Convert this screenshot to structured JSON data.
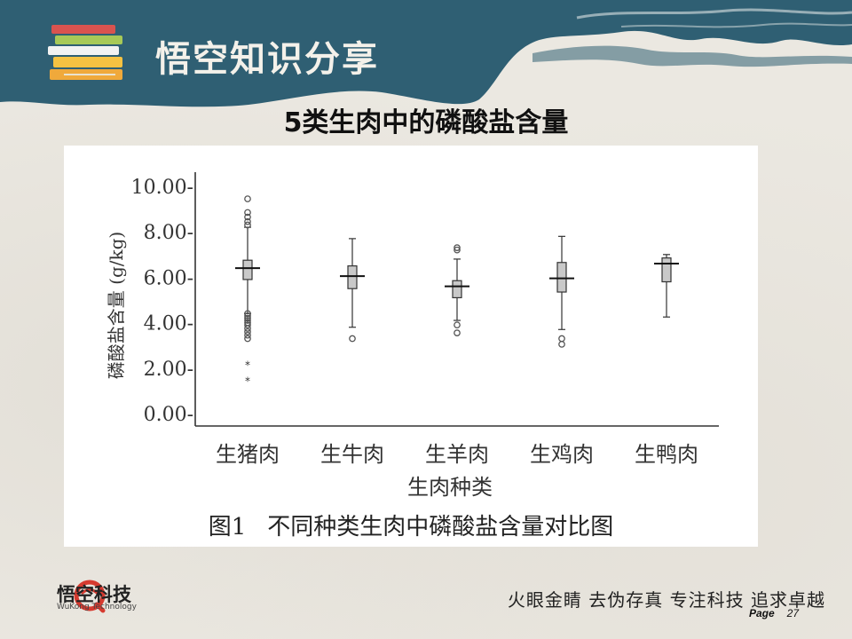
{
  "header": {
    "brand_title": "悟空知识分享",
    "slide_title": "5类生肉中的磷酸盐含量",
    "colors": {
      "banner": "#2f5f73",
      "banner_text": "#f4f1ea"
    }
  },
  "chart_data": {
    "type": "box",
    "title": "",
    "xlabel": "生肉种类",
    "ylabel": "磷酸盐含量 (g/kg)",
    "ylim": [
      0,
      10
    ],
    "yticks": [
      0,
      2,
      4,
      6,
      8,
      10
    ],
    "ytick_labels": [
      "0.00-",
      "2.00-",
      "4.00-",
      "6.00-",
      "8.00-",
      "10.00-"
    ],
    "categories": [
      "生猪肉",
      "生牛肉",
      "生羊肉",
      "生鸡肉",
      "生鸭肉"
    ],
    "boxes": [
      {
        "name": "生猪肉",
        "whisker_low": 4.4,
        "q1": 5.9,
        "median": 6.4,
        "q3": 6.75,
        "whisker_high": 8.2,
        "outliers": [
          9.45,
          8.85,
          8.65,
          8.45,
          8.3,
          4.4,
          4.3,
          4.2,
          4.1,
          4.0,
          3.9,
          3.75,
          3.6,
          3.45,
          3.3
        ],
        "extremes": [
          2.2,
          1.5
        ]
      },
      {
        "name": "生牛肉",
        "whisker_low": 3.8,
        "q1": 5.5,
        "median": 6.05,
        "q3": 6.5,
        "whisker_high": 7.7,
        "outliers": [
          3.3
        ],
        "extremes": []
      },
      {
        "name": "生羊肉",
        "whisker_low": 4.1,
        "q1": 5.1,
        "median": 5.6,
        "q3": 5.85,
        "whisker_high": 6.8,
        "outliers": [
          7.3,
          7.2,
          3.9,
          3.55
        ],
        "extremes": []
      },
      {
        "name": "生鸡肉",
        "whisker_low": 3.7,
        "q1": 5.35,
        "median": 5.95,
        "q3": 6.65,
        "whisker_high": 7.8,
        "outliers": [
          3.3,
          3.05
        ],
        "extremes": []
      },
      {
        "name": "生鸭肉",
        "whisker_low": 4.25,
        "q1": 5.8,
        "median": 6.6,
        "q3": 6.85,
        "whisker_high": 7.0,
        "outliers": [],
        "extremes": []
      }
    ],
    "legend": "none",
    "grid": false
  },
  "caption": {
    "label": "图1",
    "text": "不同种类生肉中磷酸盐含量对比图"
  },
  "footer": {
    "company_name": "悟空科技",
    "company_en": "WuKong Technology",
    "slogan": "火眼金睛 去伪存真 专注科技 追求卓越",
    "page_label": "Page",
    "page_number": "27"
  }
}
